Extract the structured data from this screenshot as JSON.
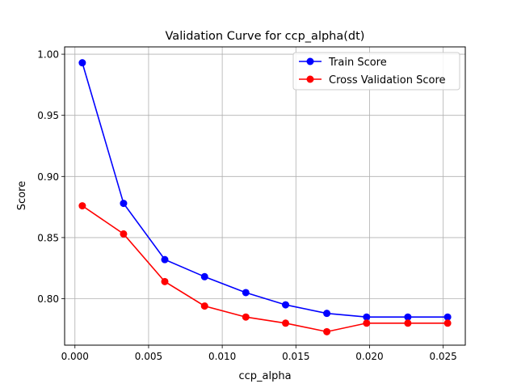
{
  "chart_data": {
    "type": "line",
    "title": "Validation Curve for ccp_alpha(dt)",
    "xlabel": "ccp_alpha",
    "ylabel": "Score",
    "xlim": [
      -0.0007,
      0.0265
    ],
    "ylim": [
      0.762,
      1.006
    ],
    "grid": true,
    "legend_position": "top-right",
    "x_ticks": [
      0.0,
      0.005,
      0.01,
      0.015,
      0.02,
      0.025
    ],
    "x_tick_labels": [
      "0.000",
      "0.005",
      "0.010",
      "0.015",
      "0.020",
      "0.025"
    ],
    "y_ticks": [
      0.8,
      0.85,
      0.9,
      0.95,
      1.0
    ],
    "y_tick_labels": [
      "0.80",
      "0.85",
      "0.90",
      "0.95",
      "1.00"
    ],
    "x": [
      0.0005,
      0.0033,
      0.0061,
      0.0088,
      0.0116,
      0.0143,
      0.0171,
      0.0198,
      0.0226,
      0.0253
    ],
    "series": [
      {
        "name": "Train Score",
        "color": "#0000ff",
        "values": [
          0.993,
          0.878,
          0.832,
          0.818,
          0.805,
          0.795,
          0.788,
          0.785,
          0.785,
          0.785
        ]
      },
      {
        "name": "Cross Validation Score",
        "color": "#ff0000",
        "values": [
          0.876,
          0.853,
          0.814,
          0.794,
          0.785,
          0.78,
          0.773,
          0.78,
          0.78,
          0.78
        ]
      }
    ]
  }
}
